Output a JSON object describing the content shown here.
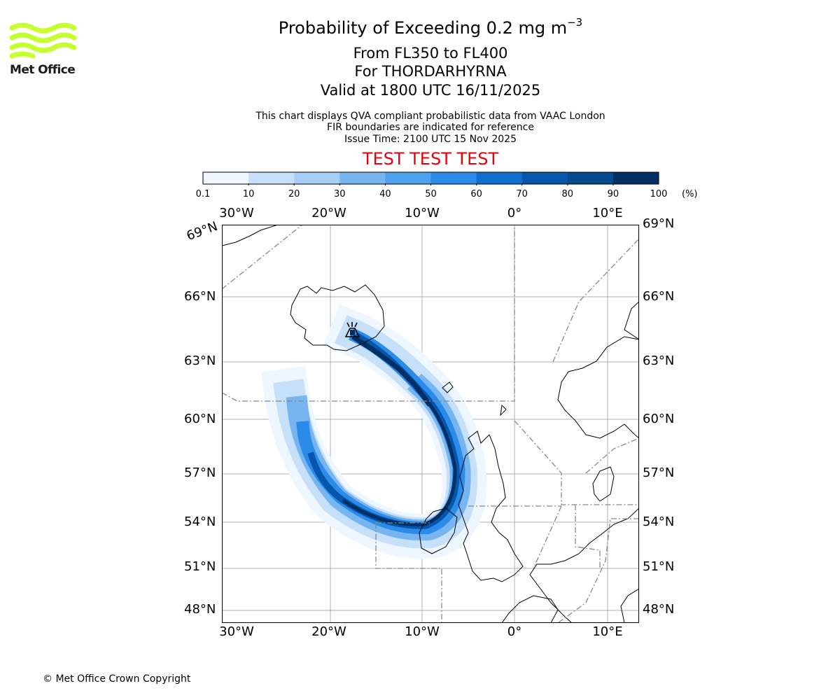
{
  "logo": {
    "text": "Met Office",
    "color": "#c6ff2e"
  },
  "title": {
    "main": "Probability of Exceeding 0.2 mg m",
    "main_sup": "−3",
    "levels": "From FL350 to FL400",
    "volcano": "For THORDARHYRNA",
    "valid": "Valid at 1800 UTC 16/11/2025"
  },
  "notes": [
    "This chart displays QVA compliant probabilistic data from VAAC London",
    "FIR boundaries are indicated for reference",
    "Issue Time: 2100 UTC 15 Nov 2025"
  ],
  "banner": {
    "text": "TEST TEST TEST",
    "color": "#e8000b"
  },
  "colorbar": {
    "ticks": [
      "0.1",
      "10",
      "20",
      "30",
      "40",
      "50",
      "60",
      "70",
      "80",
      "90",
      "100"
    ],
    "unit": "(%)",
    "colors": [
      "#eef6ff",
      "#c7e0fa",
      "#a7cff5",
      "#76b5f0",
      "#4ea1ee",
      "#2a8be8",
      "#0f6fd0",
      "#0656ac",
      "#034b8c",
      "#022f63"
    ]
  },
  "map": {
    "lon_labels": [
      "30°W",
      "20°W",
      "10°W",
      "0°",
      "10°E"
    ],
    "lat_labels_left": [
      "69°N",
      "66°N",
      "63°N",
      "60°N",
      "57°N",
      "54°N",
      "51°N",
      "48°N"
    ],
    "lat_labels_right": [
      "69°N",
      "66°N",
      "63°N",
      "60°N",
      "57°N",
      "54°N",
      "51°N",
      "48°N"
    ],
    "volcano_icon": "volcano-icon"
  },
  "copyright": "© Met Office Crown Copyright"
}
